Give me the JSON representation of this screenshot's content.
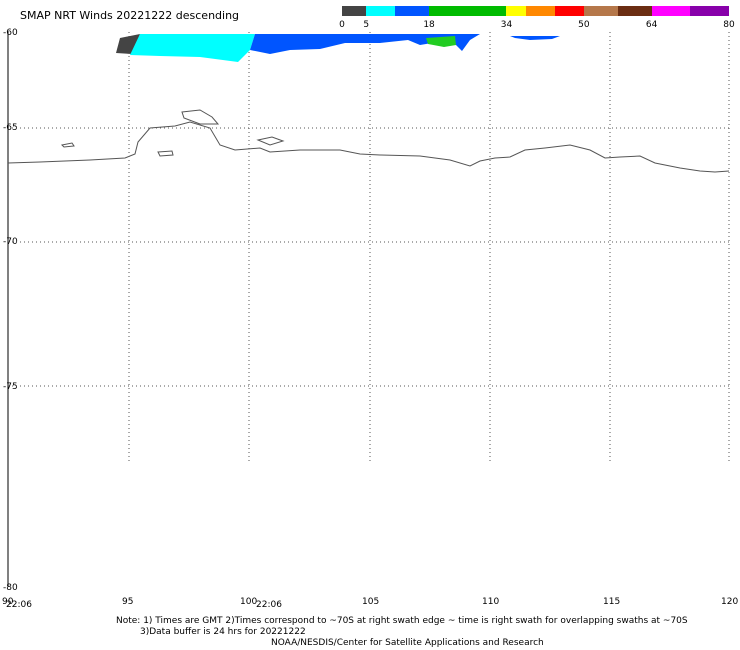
{
  "header": {
    "title": "SMAP NRT Winds  20221222 descending"
  },
  "colorbar": {
    "segments": [
      {
        "color": "#444444",
        "from": 0,
        "to": 5
      },
      {
        "color": "#00ffff",
        "from": 5,
        "to": 11
      },
      {
        "color": "#0055ff",
        "from": 11,
        "to": 18
      },
      {
        "color": "#00bb00",
        "from": 18,
        "to": 34
      },
      {
        "color": "#ffff00",
        "from": 34,
        "to": 38
      },
      {
        "color": "#ff8800",
        "from": 38,
        "to": 44
      },
      {
        "color": "#ff0000",
        "from": 44,
        "to": 50
      },
      {
        "color": "#b5774a",
        "from": 50,
        "to": 57
      },
      {
        "color": "#6b2d12",
        "from": 57,
        "to": 64
      },
      {
        "color": "#ff00ff",
        "from": 64,
        "to": 72
      },
      {
        "color": "#8800aa",
        "from": 72,
        "to": 80
      }
    ],
    "labels": [
      "0",
      "5",
      "18",
      "34",
      "50",
      "64",
      "80"
    ]
  },
  "map": {
    "lon_range": [
      90,
      120
    ],
    "lat_range": [
      -80,
      -60
    ],
    "lon_ticks": [
      "90",
      "95",
      "100",
      "105",
      "110",
      "115",
      "120"
    ],
    "lat_ticks": [
      "-60",
      "-65",
      "-70",
      "-75",
      "-80"
    ],
    "grid": "dotted"
  },
  "swath": {
    "times": [
      "22:06",
      "22:06"
    ]
  },
  "notes": {
    "line1": "Note: 1) Times are GMT 2)Times correspond to ~70S at right swath edge ~ time is right swath for overlapping swaths at ~70S",
    "line2": "3)Data buffer is 24 hrs for 20221222",
    "line3": "NOAA/NESDIS/Center for Satellite Applications and Research"
  }
}
